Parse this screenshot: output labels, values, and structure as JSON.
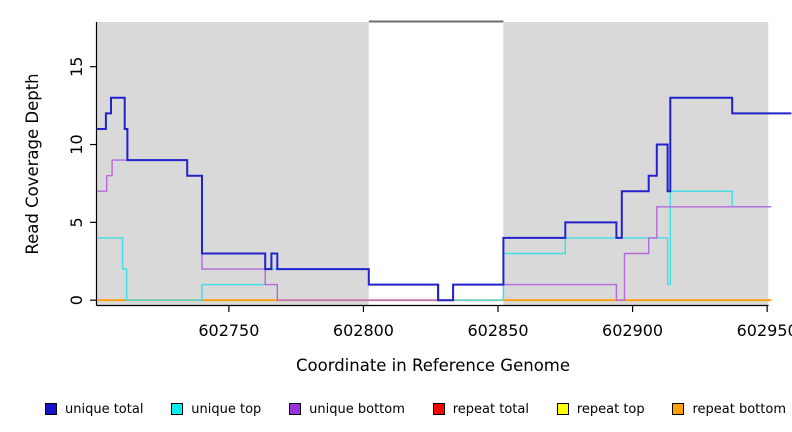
{
  "chart_data": {
    "type": "line",
    "subtype": "step-after",
    "xlabel": "Coordinate in Reference Genome",
    "ylabel": "Read Coverage Depth",
    "xlim": [
      602701,
      602950.5
    ],
    "ylim": [
      0,
      18
    ],
    "xticks": [
      602750,
      602800,
      602850,
      602900,
      602950
    ],
    "yticks": [
      0,
      5,
      10,
      15
    ],
    "grid": false,
    "plot_background": "#D9D9D9",
    "bands": [
      {
        "x1": 602701,
        "x2": 602802,
        "fill": "#D9D9D9"
      },
      {
        "x1": 602802,
        "x2": 602852,
        "fill": "#FFFFFF",
        "top_border": "#6F6F6F"
      },
      {
        "x1": 602852,
        "x2": 602950.4,
        "fill": "#D9D9D9"
      }
    ],
    "series": [
      {
        "name": "repeat-total",
        "label": "repeat total",
        "color": "#E81A1A",
        "width": 1.3,
        "end": 602951.5,
        "points": [
          [
            602701,
            0
          ]
        ]
      },
      {
        "name": "repeat-top",
        "label": "repeat top",
        "color": "#FFFF00",
        "width": 1.3,
        "end": 602951.5,
        "points": [
          [
            602701,
            0
          ]
        ]
      },
      {
        "name": "repeat-bottom",
        "label": "repeat bottom",
        "color": "#FF9D09",
        "width": 1.8,
        "end": 602951.5,
        "points": [
          [
            602701,
            0
          ]
        ]
      },
      {
        "name": "unique-top",
        "label": "unique top",
        "color": "#3FDDE8",
        "width": 1.4,
        "end": 602951.5,
        "points": [
          [
            602701,
            4
          ],
          [
            602710.5,
            2
          ],
          [
            602712,
            0
          ],
          [
            602740,
            1
          ],
          [
            602763.5,
            2
          ],
          [
            602802,
            1
          ],
          [
            602828,
            0
          ],
          [
            602852,
            3
          ],
          [
            602875,
            4
          ],
          [
            602913,
            1
          ],
          [
            602914,
            7
          ],
          [
            602937,
            6
          ]
        ]
      },
      {
        "name": "unique-bottom",
        "label": "unique bottom",
        "color": "#B469DC",
        "width": 1.4,
        "end": 602951.5,
        "points": [
          [
            602701,
            7
          ],
          [
            602704.6,
            8
          ],
          [
            602706.6,
            9
          ],
          [
            602734.5,
            8
          ],
          [
            602740,
            2
          ],
          [
            602763.5,
            1
          ],
          [
            602768,
            0
          ],
          [
            602833.3,
            1
          ],
          [
            602894,
            0
          ],
          [
            602897,
            3
          ],
          [
            602906,
            4
          ],
          [
            602909,
            6
          ]
        ]
      },
      {
        "name": "unique-total",
        "label": "unique total",
        "color": "#2222CC",
        "width": 2,
        "end": 602959,
        "points": [
          [
            602701,
            11
          ],
          [
            602704.3,
            12
          ],
          [
            602706.2,
            13
          ],
          [
            602711.3,
            11
          ],
          [
            602712.3,
            9
          ],
          [
            602734.5,
            8
          ],
          [
            602740,
            3
          ],
          [
            602763.5,
            2
          ],
          [
            602765.8,
            3
          ],
          [
            602768,
            2
          ],
          [
            602802,
            1
          ],
          [
            602827.7,
            0
          ],
          [
            602833.3,
            1
          ],
          [
            602852,
            4
          ],
          [
            602875,
            5
          ],
          [
            602894,
            4
          ],
          [
            602896,
            7
          ],
          [
            602906,
            8
          ],
          [
            602909,
            10
          ],
          [
            602913,
            7
          ],
          [
            602914,
            13
          ],
          [
            602937,
            12
          ]
        ]
      }
    ],
    "legend": [
      {
        "label": "unique total",
        "color": "#1414CC"
      },
      {
        "label": "unique top",
        "color": "#00EEEE"
      },
      {
        "label": "unique bottom",
        "color": "#9B30E0"
      },
      {
        "label": "repeat total",
        "color": "#FF0000"
      },
      {
        "label": "repeat top",
        "color": "#FFFF00"
      },
      {
        "label": "repeat bottom",
        "color": "#FFA200"
      }
    ],
    "legend_position": "bottom"
  }
}
